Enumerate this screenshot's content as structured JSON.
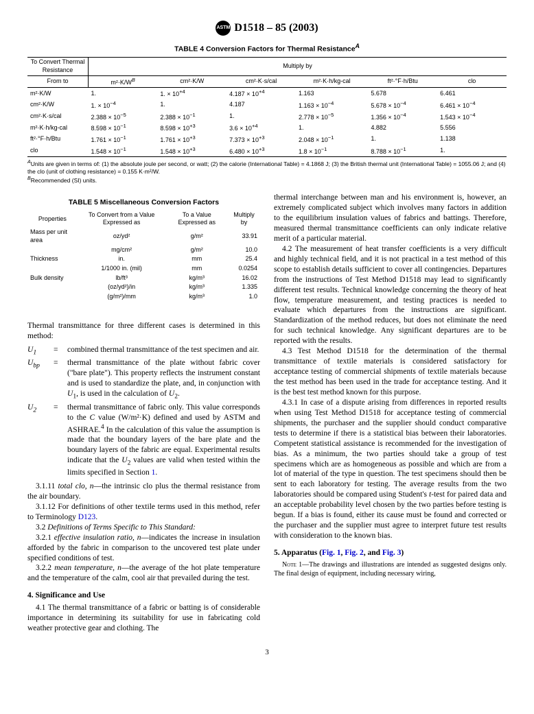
{
  "standard_id": "D1518 – 85  (2003)",
  "logo_text": "ASTM",
  "table4": {
    "title_html": "TABLE 4  Conversion Factors for Thermal Resistance<sup><i>A</i></sup>",
    "corner_label": "To Convert Thermal Resistance",
    "header_span": "Multiply by",
    "from_to": "From to",
    "columns_html": [
      "m²·K/W<sup><i>B</i></sup>",
      "cm²·K/W",
      "cm²·K·s/cal",
      "m²·K·h/kg-cal",
      "ft²·°F·h/Btu",
      "clo"
    ],
    "rows": [
      {
        "label": "m²·K/W",
        "cells": [
          "1.",
          "1. × 10<sup>+4</sup>",
          "4.187 × 10<sup>+4</sup>",
          "1.163",
          "5.678",
          "6.461"
        ]
      },
      {
        "label": "cm²·K/W",
        "cells": [
          "1. × 10<sup>−4</sup>",
          "1.",
          "4.187",
          "1.163 × 10<sup>−4</sup>",
          "5.678 × 10<sup>−4</sup>",
          "6.461 × 10<sup>−4</sup>"
        ]
      },
      {
        "label": "cm²·K·s/cal",
        "cells": [
          "2.388 × 10<sup>−5</sup>",
          "2.388 × 10<sup>−1</sup>",
          "1.",
          "2.778 × 10<sup>−5</sup>",
          "1.356 × 10<sup>−4</sup>",
          "1.543 × 10<sup>−4</sup>"
        ]
      },
      {
        "label": "m²·K·h/kg-cal",
        "cells": [
          "8.598 × 10<sup>−1</sup>",
          "8.598 × 10<sup>+3</sup>",
          "3.6 × 10<sup>+4</sup>",
          "1.",
          "4.882",
          "5.556"
        ]
      },
      {
        "label": "ft²·°F·h/Btu",
        "cells": [
          "1.761 × 10<sup>−1</sup>",
          "1.761 × 10<sup>+3</sup>",
          "7.373 × 10<sup>+3</sup>",
          "2.048 × 10<sup>−1</sup>",
          "1.",
          "1.138"
        ]
      },
      {
        "label": "clo",
        "cells": [
          "1.548 × 10<sup>−1</sup>",
          "1.548 × 10<sup>+3</sup>",
          "6.480 × 10<sup>+3</sup>",
          "1.8 × 10<sup>−1</sup>",
          "8.788 × 10<sup>−1</sup>",
          "1."
        ]
      }
    ],
    "footnote_a_html": "<sup><i>A</i></sup>Units are given in terms of: (1) the absolute joule per second, or watt; (2) the calorie (International Table) = 4.1868 J; (3) the British thermal unit (International Table) = 1055.06 J; and (4) the clo (unit of clothing resistance) = 0.155 K·m²/W.",
    "footnote_b_html": "<sup><i>B</i></sup>Recommended (SI) units."
  },
  "table5": {
    "title": "TABLE 5  Miscellaneous Conversion Factors",
    "headers": [
      "Properties",
      "To Convert from a Value Expressed as",
      "To a Value Expressed as",
      "Multiply by"
    ],
    "rows": [
      {
        "prop": "Mass per unit area",
        "from": "oz/yd²",
        "to": "g/m²",
        "mult": "33.91"
      },
      {
        "prop": "",
        "from": "mg/cm²",
        "to": "g/m²",
        "mult": "10.0"
      },
      {
        "prop": "Thickness",
        "from": "in.",
        "to": "mm",
        "mult": "25.4"
      },
      {
        "prop": "",
        "from": "1/1000 in. (mil)",
        "to": "mm",
        "mult": "0.0254"
      },
      {
        "prop": "Bulk density",
        "from": "lb/ft³",
        "to": "kg/m³",
        "mult": "16.02"
      },
      {
        "prop": "",
        "from": "(oz/yd²)/in",
        "to": "kg/m³",
        "mult": "1.335"
      },
      {
        "prop": "",
        "from": "(g/m²)/mm",
        "to": "kg/m³",
        "mult": "1.0"
      }
    ]
  },
  "left_col": {
    "intro": "Thermal transmittance for three different cases is determined in this method:",
    "defs": [
      {
        "sym": "U<sub>1</sub>",
        "txt": "combined thermal transmittance of the test specimen and air."
      },
      {
        "sym": "U<sub>bp</sub>",
        "txt": "thermal transmittance of the plate without fabric cover (\"bare plate\"). This property reflects the instrument constant and is used to standardize the plate, and, in conjunction with <i>U</i><sub>1</sub>, is used in the calculation of <i>U</i><sub>2</sub>."
      },
      {
        "sym": "U<sub>2</sub>",
        "txt": "thermal transmittance of fabric only. This value corresponds to the <i>C</i> value (W/m²·K) defined and used by ASTM and ASHRAE.<sup>4</sup> In the calculation of this value the assumption is made that the boundary layers of the bare plate and the boundary layers of the fabric are equal. Experimental results indicate that the <i>U</i><sub>2</sub> values are valid when tested within the limits specified in Section <span class=\"link\">1</span>."
      }
    ],
    "p_3_1_11": "3.1.11 <i>total clo, n</i>—the intrinsic clo plus the thermal resistance from the air boundary.",
    "p_3_1_12": "3.1.12 For definitions of other textile terms used in this method, refer to Terminology <span class=\"link\">D123</span>.",
    "p_3_2": "3.2 <i>Definitions of Terms Specific to This Standard:</i>",
    "p_3_2_1": "3.2.1 <i>effective insulation ratio, n</i>—indicates the increase in insulation afforded by the fabric in comparison to the uncovered test plate under specified conditions of test.",
    "p_3_2_2": "3.2.2 <i>mean temperature, n</i>—the average of the hot plate temperature and the temperature of the calm, cool air that prevailed during the test.",
    "sec4_heading": "4. Significance and Use",
    "p_4_1": "4.1 The thermal transmittance of a fabric or batting is of considerable importance in determining its suitability for use in fabricating cold weather protective gear and clothing. The"
  },
  "right_col": {
    "cont": "thermal interchange between man and his environment is, however, an extremely complicated subject which involves many factors in addition to the equilibrium insulation values of fabrics and battings. Therefore, measured thermal transmittance coefficients can only indicate relative merit of a particular material.",
    "p_4_2": "4.2 The measurement of heat transfer coefficients is a very difficult and highly technical field, and it is not practical in a test method of this scope to establish details sufficient to cover all contingencies. Departures from the instructions of Test Method D1518 may lead to significantly different test results. Technical knowledge concerning the theory of heat flow, temperature measurement, and testing practices is needed to evaluate which departures from the instructions are significant. Standardization of the method reduces, but does not eliminate the need for such technical knowledge. Any significant departures are to be reported with the results.",
    "p_4_3": "4.3 Test Method D1518 for the determination of the thermal transmittance of textile materials is considered satisfactory for acceptance testing of commercial shipments of textile materials because the test method has been used in the trade for acceptance testing. And it is the best test method known for this purpose.",
    "p_4_3_1": "4.3.1 In case of a dispute arising from differences in reported results when using Test Method D1518 for acceptance testing of commercial shipments, the purchaser and the supplier should conduct comparative tests to determine if there is a statistical bias between their laboratories. Competent statistical assistance is recommended for the investigation of bias. As a minimum, the two parties should take a group of test specimens which are as homogeneous as possible and which are from a lot of material of the type in question. The test specimens should then be sent to each laboratory for testing. The average results from the two laboratories should be compared using Student's <i>t</i>-test for paired data and an acceptable probability level chosen by the two parties before testing is begun. If a bias is found, either its cause must be found and corrected or the purchaser and the supplier must agree to interpret future test results with consideration to the known bias.",
    "sec5_heading_html": "5. Apparatus (<span class=\"link\">Fig. 1</span>, <span class=\"link\">Fig. 2</span>, and <span class=\"link\">Fig. 3</span>)",
    "note1": "N<span style=\"font-variant:small-caps\">ote</span> 1—The drawings and illustrations are intended as suggested designs only. The final design of equipment, including necessary wiring,"
  },
  "page_number": "3"
}
